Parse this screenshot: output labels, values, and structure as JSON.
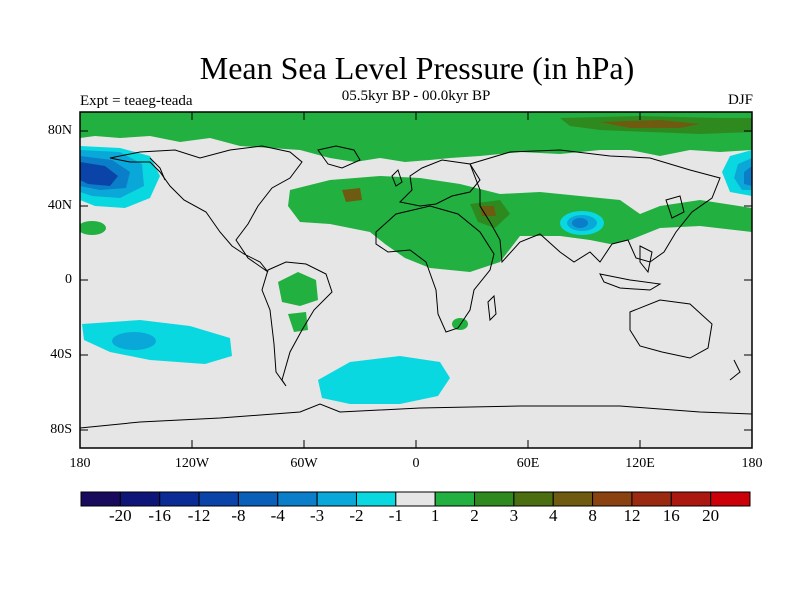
{
  "title": "Mean Sea Level Pressure (in hPa)",
  "subtitle": "05.5kyr BP - 00.0kyr BP",
  "experiment": "Expt = teaeg-teada",
  "season": "DJF",
  "y_ticks": [
    "80N",
    "40N",
    "0",
    "40S",
    "80S"
  ],
  "x_ticks": [
    "180",
    "120W",
    "60W",
    "0",
    "60E",
    "120E",
    "180"
  ],
  "colorbar": {
    "colors": [
      "#1a0a5e",
      "#0d1678",
      "#0a2c94",
      "#0b44a8",
      "#0a5fb8",
      "#0a7ec8",
      "#0aa8d8",
      "#0ad8e0",
      "#e6e6e6",
      "#22b040",
      "#2e8a1e",
      "#4a6e10",
      "#6e5a10",
      "#8a4210",
      "#9a2a10",
      "#aa1810",
      "#cc0008"
    ],
    "labels": [
      "-20",
      "-16",
      "-12",
      "-8",
      "-4",
      "-3",
      "-2",
      "-1",
      "1",
      "2",
      "3",
      "4",
      "8",
      "12",
      "16",
      "20"
    ]
  },
  "colors": {
    "neutral": "#e6e6e6",
    "green": "#22b040",
    "dark_green": "#2e8a1e",
    "olive": "#6e5a10",
    "cyan": "#0ad8e0",
    "blue_light": "#0aa8d8",
    "blue_mid": "#0a7ec8",
    "blue_dark": "#0a44a8"
  }
}
